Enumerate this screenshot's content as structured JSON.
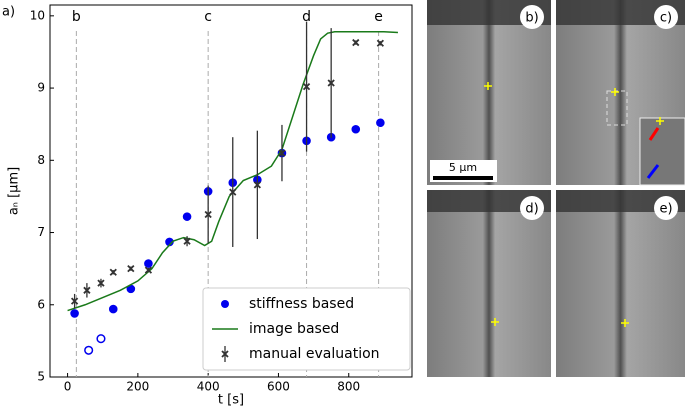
{
  "figure_label": "a)",
  "chart_data": {
    "type": "scatter",
    "xlabel": "t [s]",
    "ylabel": "aₙ [µm]",
    "xlim": [
      -50,
      980
    ],
    "ylim": [
      5,
      10.15
    ],
    "xticks": [
      0,
      200,
      400,
      600,
      800
    ],
    "yticks": [
      5,
      6,
      7,
      8,
      9,
      10
    ],
    "legend": "lower right",
    "annotations": [
      {
        "text": "b",
        "x": 25
      },
      {
        "text": "c",
        "x": 400
      },
      {
        "text": "d",
        "x": 680
      },
      {
        "text": "e",
        "x": 885
      }
    ],
    "series": [
      {
        "name": "stiffness based",
        "kind": "scatter",
        "color": "#0000ee",
        "x": [
          20,
          60,
          95,
          130,
          180,
          230,
          290,
          340,
          400,
          470,
          540,
          610,
          680,
          750,
          820,
          890
        ],
        "values": [
          5.88,
          5.37,
          5.53,
          5.94,
          6.22,
          6.57,
          6.87,
          7.22,
          7.57,
          7.69,
          7.73,
          8.1,
          8.27,
          8.32,
          8.43,
          8.52
        ],
        "hollow": [
          false,
          true,
          true,
          false,
          false,
          false,
          false,
          false,
          false,
          false,
          false,
          false,
          false,
          false,
          false,
          false
        ]
      },
      {
        "name": "image based",
        "kind": "line",
        "color": "#1a7a1a",
        "x": [
          0,
          50,
          100,
          150,
          200,
          240,
          270,
          300,
          330,
          360,
          390,
          410,
          430,
          460,
          500,
          540,
          580,
          610,
          640,
          670,
          700,
          720,
          740,
          760,
          800,
          900,
          940
        ],
        "values": [
          5.92,
          6.0,
          6.1,
          6.2,
          6.33,
          6.5,
          6.72,
          6.88,
          6.93,
          6.9,
          6.82,
          6.88,
          7.15,
          7.5,
          7.72,
          7.8,
          7.92,
          8.15,
          8.6,
          9.05,
          9.45,
          9.68,
          9.76,
          9.78,
          9.78,
          9.78,
          9.77
        ]
      },
      {
        "name": "manual evaluation",
        "kind": "errorbar",
        "color": "#333333",
        "x": [
          20,
          55,
          95,
          130,
          180,
          230,
          340,
          400,
          470,
          540,
          610,
          680,
          750,
          820,
          890
        ],
        "values": [
          6.05,
          6.2,
          6.3,
          6.45,
          6.5,
          6.48,
          6.88,
          7.25,
          7.56,
          7.66,
          8.1,
          9.02,
          9.07,
          9.63,
          9.62
        ],
        "errors": [
          0.1,
          0.1,
          0.06,
          0.03,
          0.03,
          0.03,
          0.07,
          0.4,
          0.76,
          0.75,
          0.39,
          0.9,
          0.76,
          0.03,
          0.03
        ]
      }
    ]
  },
  "panels": [
    {
      "label": "b)"
    },
    {
      "label": "c)"
    },
    {
      "label": "d)"
    },
    {
      "label": "e)"
    }
  ],
  "scale_bar": "5 µm"
}
